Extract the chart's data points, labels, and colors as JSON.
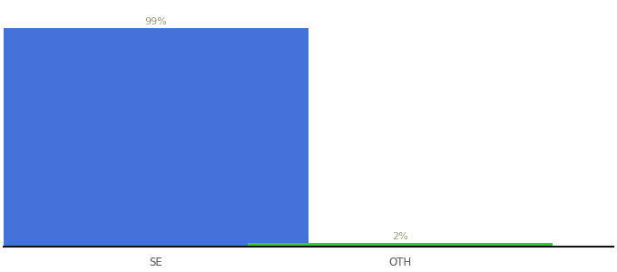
{
  "categories": [
    "SE",
    "OTH"
  ],
  "values": [
    99,
    2
  ],
  "bar_colors": [
    "#4472db",
    "#33cc33"
  ],
  "labels": [
    "99%",
    "2%"
  ],
  "label_color": "#999977",
  "ylim": [
    0,
    110
  ],
  "background_color": "#ffffff",
  "bar_width": 0.5,
  "label_fontsize": 8,
  "tick_fontsize": 8.5,
  "axis_line_color": "#111111",
  "x_positions": [
    0.25,
    0.65
  ]
}
